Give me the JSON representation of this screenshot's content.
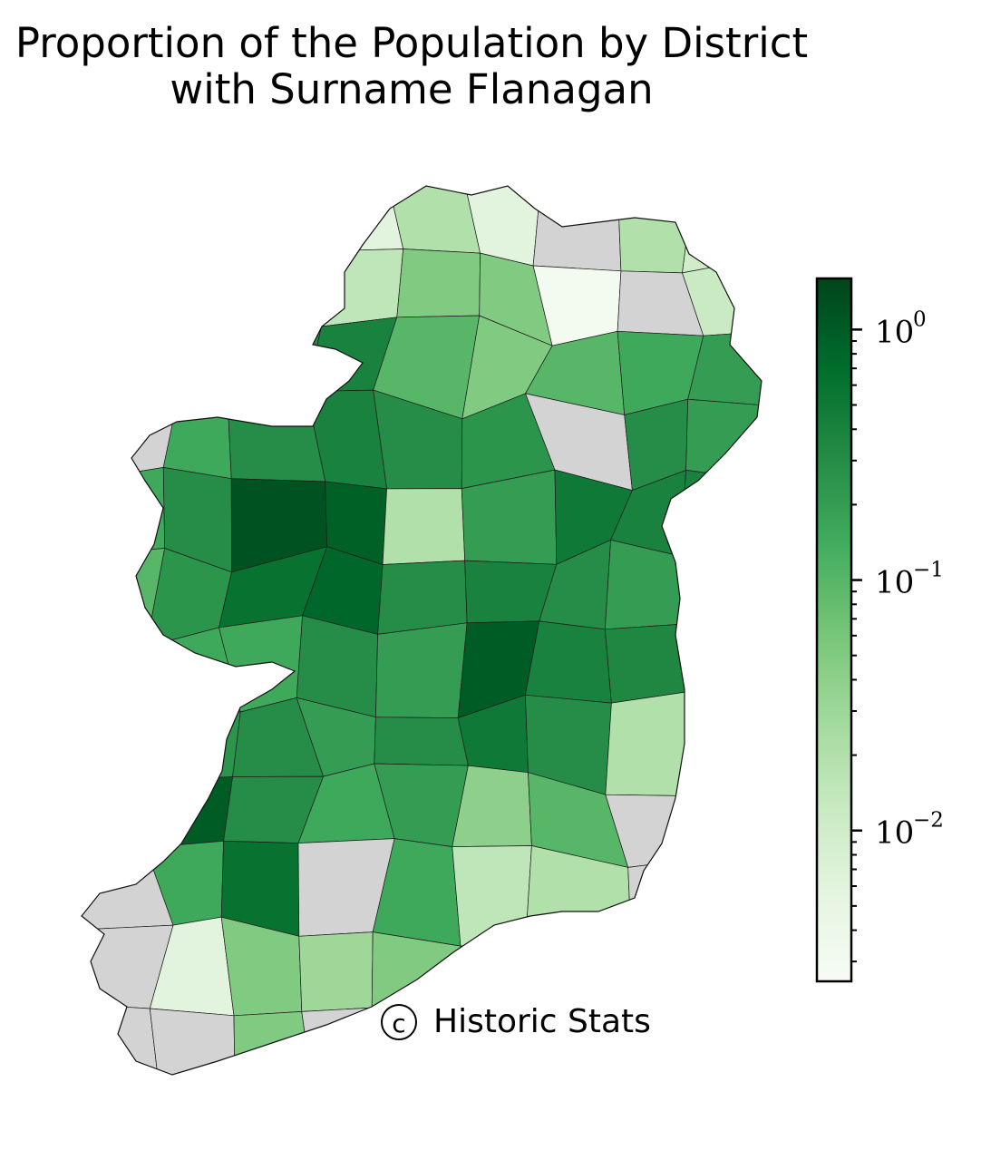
{
  "title": {
    "line1": "Proportion of the Population by District",
    "line2": "with Surname Flanagan"
  },
  "credit": {
    "symbol": "c",
    "text": "Historic Stats"
  },
  "chart_data": {
    "type": "choropleth",
    "region": "Ireland",
    "value_description": "proportion of population with surname Flanagan per district",
    "no_data_color": "#d3d3d3",
    "colorbar": {
      "position": "right",
      "scale": "log",
      "colormap": "Greens",
      "range": [
        0.0025,
        1.6
      ],
      "ticks": [
        {
          "value": 1,
          "base": "10",
          "exp": "0"
        },
        {
          "value": 0.1,
          "base": "10",
          "exp": "−1"
        },
        {
          "value": 0.01,
          "base": "10",
          "exp": "−2"
        }
      ]
    },
    "regions": [
      {
        "v": null
      },
      {
        "v": null
      },
      {
        "v": 0.02
      },
      {
        "v": 0.006
      },
      {
        "v": 0.02
      },
      {
        "v": 0.006
      },
      {
        "v": null
      },
      {
        "v": 0.02
      },
      {
        "v": 0.01
      },
      {
        "v": 0.15
      },
      {
        "v": 0.08
      },
      {
        "v": 0.05
      },
      {
        "v": 0.015
      },
      {
        "v": 0.05
      },
      {
        "v": 0.05
      },
      {
        "v": 0.003
      },
      {
        "v": null
      },
      {
        "v": 0.012
      },
      {
        "v": 0.2
      },
      {
        "v": 0.5
      },
      {
        "v": 0.3
      },
      {
        "v": 0.4
      },
      {
        "v": 0.1
      },
      {
        "v": 0.05
      },
      {
        "v": 0.1
      },
      {
        "v": 0.15
      },
      {
        "v": 0.2
      },
      {
        "v": null
      },
      {
        "v": 0.15
      },
      {
        "v": 0.3
      },
      {
        "v": 0.4
      },
      {
        "v": 0.3
      },
      {
        "v": 0.25
      },
      {
        "v": null
      },
      {
        "v": 0.3
      },
      {
        "v": 0.2
      },
      {
        "v": 0.15
      },
      {
        "v": 0.3
      },
      {
        "v": 1.2
      },
      {
        "v": 0.9
      },
      {
        "v": 0.02
      },
      {
        "v": 0.2
      },
      {
        "v": 0.5
      },
      {
        "v": 0.4
      },
      {
        "v": 0.4
      },
      {
        "v": 0.1
      },
      {
        "v": 0.25
      },
      {
        "v": 0.6
      },
      {
        "v": 0.8
      },
      {
        "v": 0.3
      },
      {
        "v": 0.4
      },
      {
        "v": 0.3
      },
      {
        "v": 0.2
      },
      {
        "v": 0.25
      },
      {
        "v": 0.08
      },
      {
        "v": 0.15
      },
      {
        "v": 0.15
      },
      {
        "v": 0.3
      },
      {
        "v": 0.2
      },
      {
        "v": 1.0
      },
      {
        "v": 0.4
      },
      {
        "v": 0.35
      },
      {
        "v": 0.15
      },
      {
        "v": null
      },
      {
        "v": 0.25
      },
      {
        "v": 0.3
      },
      {
        "v": 0.2
      },
      {
        "v": 0.3
      },
      {
        "v": 0.5
      },
      {
        "v": 0.3
      },
      {
        "v": 0.02
      },
      {
        "v": 0.03
      },
      {
        "v": null
      },
      {
        "v": 1.0
      },
      {
        "v": 0.3
      },
      {
        "v": 0.15
      },
      {
        "v": 0.2
      },
      {
        "v": 0.04
      },
      {
        "v": 0.1
      },
      {
        "v": null
      },
      {
        "v": 0.04
      },
      {
        "v": null
      },
      {
        "v": 0.15
      },
      {
        "v": 0.6
      },
      {
        "v": null
      },
      {
        "v": 0.15
      },
      {
        "v": 0.015
      },
      {
        "v": 0.02
      },
      {
        "v": null
      },
      {
        "v": null
      },
      {
        "v": null
      },
      {
        "v": 0.006
      },
      {
        "v": 0.05
      },
      {
        "v": 0.03
      },
      {
        "v": 0.05
      },
      {
        "v": 0.2
      },
      {
        "v": 0.02
      },
      {
        "v": null
      },
      {
        "v": 0.015
      },
      {
        "v": null
      },
      {
        "v": null
      },
      {
        "v": 0.05
      },
      {
        "v": null
      },
      {
        "v": 0.02
      },
      {
        "v": 0.03
      },
      {
        "v": 0.02
      },
      {
        "v": null
      },
      {
        "v": null
      }
    ]
  }
}
